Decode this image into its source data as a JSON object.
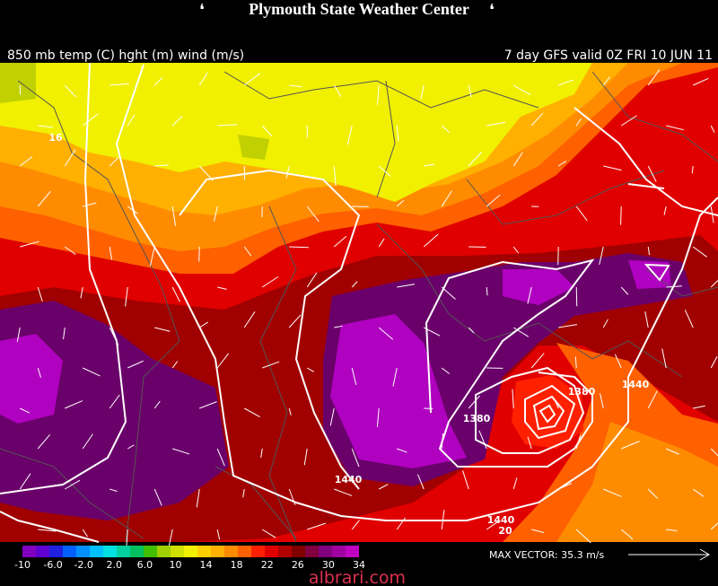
{
  "header": {
    "title": "Plymouth State Weather Center",
    "left": "850 mb temp (C) hght (m) wind (m/s)",
    "right": "7 day GFS valid 0Z FRI 10 JUN 11"
  },
  "map": {
    "contour_labels": [
      "16",
      "1380",
      "1380",
      "1440",
      "1440",
      "1440",
      "20"
    ]
  },
  "colorbar": {
    "labels": [
      "-10",
      "-6.0",
      "-2.0",
      "2.0",
      "6.0",
      "10",
      "14",
      "18",
      "22",
      "26",
      "30",
      "34"
    ],
    "colors": [
      "#8000c0",
      "#6000d0",
      "#2020e0",
      "#0060ff",
      "#0090ff",
      "#00c0ff",
      "#00e0e0",
      "#00d0a0",
      "#00c060",
      "#40c000",
      "#a0d000",
      "#d0e000",
      "#f0f000",
      "#ffd000",
      "#ffb000",
      "#ff8c00",
      "#ff6000",
      "#ff2000",
      "#e00000",
      "#b00000",
      "#800000",
      "#800040",
      "#800080",
      "#a000a0",
      "#c000c0"
    ]
  },
  "footer": {
    "max_vector": "MAX VECTOR: 35.3 m/s",
    "watermark": "albrari.com"
  }
}
